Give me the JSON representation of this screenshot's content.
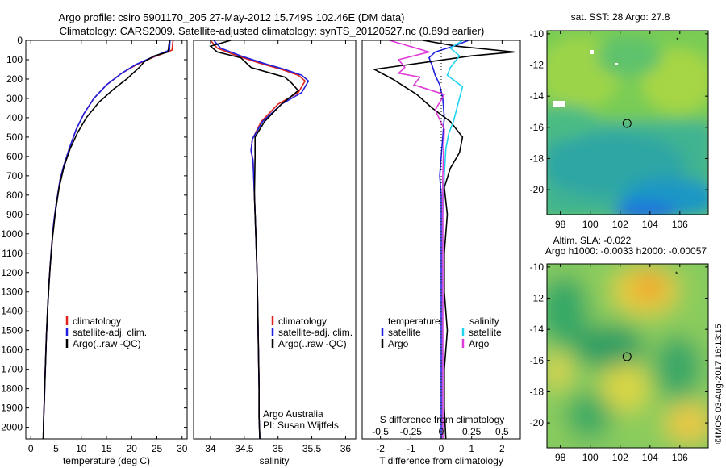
{
  "header": {
    "title_line1": "Argo profile: csiro 5901170_205 27-May-2012 15.749S 102.46E (DM data)",
    "title_line2": "Climatology: CARS2009. Satellite-adjusted climatology: synTS_20120527.nc (0.89d earlier)"
  },
  "credit": "©IMOS 03-Aug-2017 16:13:15",
  "chart_data": [
    {
      "id": "temperature",
      "type": "line",
      "xlabel": "temperature (deg C)",
      "xlim": [
        -1,
        31
      ],
      "xticks": [
        "0",
        "5",
        "10",
        "15",
        "20",
        "25",
        "30"
      ],
      "xtick_values": [
        0,
        5,
        10,
        15,
        20,
        25,
        30
      ],
      "ylim": [
        2060,
        0
      ],
      "yticks": [
        "0",
        "100",
        "200",
        "300",
        "400",
        "500",
        "600",
        "700",
        "800",
        "900",
        "1000",
        "1100",
        "1200",
        "1300",
        "1400",
        "1500",
        "1600",
        "1700",
        "1800",
        "1900",
        "2000"
      ],
      "ytick_values": [
        0,
        100,
        200,
        300,
        400,
        500,
        600,
        700,
        800,
        900,
        1000,
        1100,
        1200,
        1300,
        1400,
        1500,
        1600,
        1700,
        1800,
        1900,
        2000
      ],
      "legend": [
        "climatology",
        "satellite-adj. clim.",
        "Argo(..raw -QC)"
      ],
      "legend_position": "bottom-center",
      "series": [
        {
          "name": "climatology",
          "color": "#e0221c",
          "x": [
            28.2,
            28.0,
            24,
            21,
            18,
            15,
            12.5,
            10.5,
            9,
            7.6,
            6.5,
            5.8,
            5.0,
            4.5,
            4.0,
            3.6,
            3.3,
            3.05,
            2.85,
            2.7,
            2.55,
            2.45
          ],
          "y": [
            0,
            50,
            90,
            125,
            170,
            230,
            300,
            380,
            460,
            560,
            650,
            720,
            850,
            950,
            1100,
            1250,
            1400,
            1550,
            1700,
            1850,
            1950,
            2060
          ]
        },
        {
          "name": "satellite-adj. clim.",
          "color": "#1f1fe0",
          "x": [
            27.6,
            27.5,
            23.8,
            20.8,
            18,
            15,
            12.5,
            10.5,
            9,
            7.6,
            6.5,
            5.8,
            5.0,
            4.5,
            4.0,
            3.6,
            3.3,
            3.05,
            2.85,
            2.7,
            2.55,
            2.45
          ],
          "y": [
            0,
            50,
            90,
            125,
            170,
            230,
            300,
            380,
            460,
            560,
            650,
            720,
            850,
            950,
            1100,
            1250,
            1400,
            1550,
            1700,
            1850,
            1950,
            2060
          ]
        },
        {
          "name": "Argo(..raw -QC)",
          "color": "#000000",
          "x": [
            27.5,
            27.2,
            24.5,
            22.5,
            21.5,
            19,
            16.5,
            13.5,
            11,
            9.2,
            7.8,
            6.6,
            5.6,
            4.9,
            4.3,
            3.8,
            3.4,
            3.1,
            2.9,
            2.7,
            2.55,
            2.45
          ],
          "y": [
            0,
            60,
            80,
            110,
            140,
            200,
            250,
            320,
            400,
            480,
            560,
            650,
            760,
            880,
            1020,
            1180,
            1350,
            1520,
            1680,
            1830,
            1940,
            2060
          ]
        }
      ]
    },
    {
      "id": "salinity",
      "type": "line",
      "xlabel": "salinity",
      "xlim": [
        33.75,
        36.15
      ],
      "xticks": [
        "34",
        "34.5",
        "35",
        "35.5",
        "36"
      ],
      "xtick_values": [
        34,
        34.5,
        35,
        35.5,
        36
      ],
      "ylim": [
        2060,
        0
      ],
      "legend": [
        "climatology",
        "satellite-adj. clim.",
        "Argo(..raw -QC)"
      ],
      "legend_position": "bottom-right",
      "annotation": [
        "Argo Australia",
        "PI: Susan Wijffels"
      ],
      "series": [
        {
          "name": "climatology",
          "color": "#e0221c",
          "x": [
            34.0,
            34.1,
            34.4,
            34.75,
            35.05,
            35.3,
            35.4,
            35.3,
            35.0,
            34.75,
            34.62,
            34.6,
            34.63,
            34.65,
            34.67,
            34.69,
            34.7,
            34.71,
            34.72,
            34.72,
            34.73
          ],
          "y": [
            0,
            40,
            80,
            120,
            150,
            180,
            210,
            270,
            330,
            420,
            510,
            570,
            620,
            800,
            1000,
            1200,
            1400,
            1600,
            1800,
            1950,
            2060
          ]
        },
        {
          "name": "satellite-adj. clim.",
          "color": "#1f1fe0",
          "x": [
            34.05,
            34.15,
            34.45,
            34.8,
            35.1,
            35.35,
            35.45,
            35.35,
            35.05,
            34.77,
            34.62,
            34.6,
            34.63,
            34.65,
            34.67,
            34.69,
            34.7,
            34.71,
            34.72,
            34.72,
            34.73
          ],
          "y": [
            0,
            40,
            80,
            120,
            150,
            180,
            210,
            270,
            330,
            420,
            510,
            570,
            620,
            800,
            1000,
            1200,
            1400,
            1600,
            1800,
            1950,
            2060
          ]
        },
        {
          "name": "Argo(..raw -QC)",
          "color": "#000000",
          "x": [
            34.3,
            34.0,
            34.1,
            34.45,
            34.6,
            34.9,
            35.1,
            35.2,
            35.3,
            35.05,
            34.8,
            34.66,
            34.66,
            34.65,
            34.67,
            34.69,
            34.7,
            34.71,
            34.72,
            34.72,
            34.73
          ],
          "y": [
            0,
            30,
            60,
            90,
            140,
            170,
            190,
            220,
            260,
            330,
            420,
            500,
            600,
            800,
            1000,
            1200,
            1400,
            1600,
            1800,
            1950,
            2060
          ]
        }
      ]
    },
    {
      "id": "difference",
      "type": "line",
      "xlabel": "T difference from climatology",
      "xlabel_top": "S difference from climatology",
      "xlim": [
        -2.6,
        2.6
      ],
      "xticks": [
        "-2",
        "-1",
        "0",
        "1",
        "2"
      ],
      "xtick_values": [
        -2,
        -1,
        0,
        1,
        2
      ],
      "s_xticks": [
        "-0.5",
        "-0.25",
        "0",
        "0.25",
        "0.5"
      ],
      "s_xtick_values": [
        -2,
        -1,
        0,
        1,
        2
      ],
      "ylim": [
        2060,
        0
      ],
      "legend_temperature": [
        "temperature",
        "satellite",
        "Argo"
      ],
      "legend_salinity": [
        "salinity",
        "satellite",
        "Argo"
      ],
      "series": [
        {
          "name": "satellite",
          "color": "#1f1fe0",
          "x": [
            0.9,
            0.4,
            -0.2,
            -0.4,
            -0.3,
            -0.2,
            -0.05,
            0.05,
            0.1,
            0.05,
            0.0,
            -0.05,
            0.0,
            0.0,
            0.0,
            0.0,
            0.0,
            0.0
          ],
          "y": [
            0,
            30,
            60,
            90,
            130,
            180,
            230,
            300,
            400,
            500,
            600,
            700,
            800,
            1000,
            1300,
            1600,
            1900,
            2060
          ]
        },
        {
          "name": "Argo",
          "color": "#000000",
          "x": [
            -0.6,
            0.5,
            2.4,
            1.0,
            -2.2,
            -1.6,
            -1.2,
            -0.8,
            -0.3,
            0.3,
            0.7,
            0.6,
            0.3,
            0.1,
            0.2,
            0.1,
            0.1,
            0.2,
            0.1,
            0.1,
            0.15
          ],
          "y": [
            0,
            30,
            60,
            80,
            150,
            200,
            240,
            280,
            350,
            420,
            500,
            580,
            660,
            760,
            900,
            1100,
            1300,
            1500,
            1700,
            1900,
            2060
          ]
        },
        {
          "name": "satellite",
          "color": "#22d3ee",
          "x": [
            0.7,
            0.3,
            0.6,
            0.3,
            0.2,
            0.7,
            0.6,
            0.5,
            0.4,
            0.25,
            0.15,
            0.1,
            0.05,
            0.05,
            0.05,
            0.05
          ],
          "y": [
            0,
            40,
            80,
            140,
            180,
            240,
            300,
            360,
            420,
            480,
            560,
            700,
            900,
            1200,
            1600,
            2060
          ]
        },
        {
          "name": "Argo",
          "color": "#e03ad8",
          "x": [
            -1.7,
            -0.4,
            -1.4,
            -1.2,
            -1.4,
            -0.7,
            -0.9,
            0.1,
            -0.2,
            0.1,
            0.05,
            0.05,
            0.05
          ],
          "y": [
            0,
            60,
            100,
            140,
            170,
            190,
            230,
            280,
            360,
            460,
            700,
            1200,
            2060
          ]
        }
      ]
    },
    {
      "id": "sst_map",
      "type": "heatmap",
      "title": "sat. SST: 28 Argo: 27.8",
      "xticks": [
        "98",
        "100",
        "102",
        "104",
        "106"
      ],
      "yticks": [
        "-10",
        "-12",
        "-14",
        "-16",
        "-18",
        "-20"
      ],
      "xlim": [
        97.1,
        107.9
      ],
      "ylim": [
        -21.6,
        -9.8
      ],
      "marker": {
        "lon": 102.46,
        "lat": -15.749
      }
    },
    {
      "id": "sla_map",
      "type": "heatmap",
      "title_line1": "Altim. SLA: -0.022",
      "title_line2": "Argo h1000: -0.0033 h2000: -0.00057",
      "xticks": [
        "98",
        "100",
        "102",
        "104",
        "106"
      ],
      "yticks": [
        "-10",
        "-12",
        "-14",
        "-16",
        "-18",
        "-20"
      ],
      "xlim": [
        97.1,
        107.9
      ],
      "ylim": [
        -21.6,
        -9.8
      ],
      "marker": {
        "lon": 102.46,
        "lat": -15.749
      }
    }
  ]
}
